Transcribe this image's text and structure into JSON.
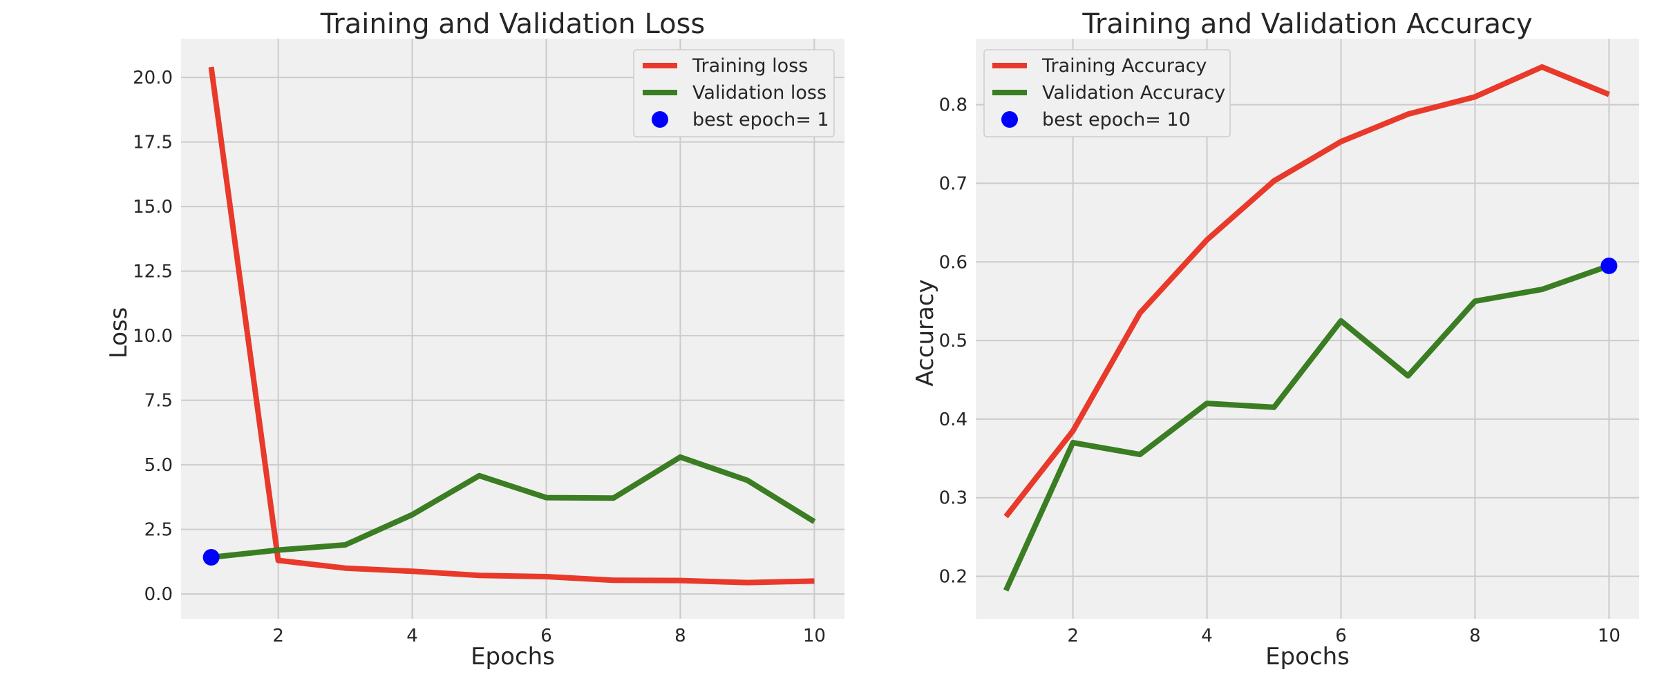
{
  "chart_data": [
    {
      "type": "line",
      "title": "Training and Validation Loss",
      "xlabel": "Epochs",
      "ylabel": "Loss",
      "x": [
        1,
        2,
        3,
        4,
        5,
        6,
        7,
        8,
        9,
        10
      ],
      "xlim": [
        0.55,
        10.45
      ],
      "ylim": [
        -0.96,
        21.5
      ],
      "xticks": [
        2,
        4,
        6,
        8,
        10
      ],
      "xtick_labels": [
        "2",
        "4",
        "6",
        "8",
        "10"
      ],
      "yticks": [
        0,
        2.5,
        5,
        7.5,
        10,
        12.5,
        15,
        17.5,
        20
      ],
      "ytick_labels": [
        "0.0",
        "2.5",
        "5.0",
        "7.5",
        "10.0",
        "12.5",
        "15.0",
        "17.5",
        "20.0"
      ],
      "grid": true,
      "legend_position": "top-right",
      "series": [
        {
          "name": "Training loss",
          "color": "#e8392a",
          "values": [
            20.4,
            1.3,
            1.0,
            0.88,
            0.72,
            0.67,
            0.53,
            0.52,
            0.44,
            0.5
          ]
        },
        {
          "name": "Validation loss",
          "color": "#3a7d22",
          "values": [
            1.42,
            1.7,
            1.9,
            3.07,
            4.58,
            3.73,
            3.71,
            5.3,
            4.4,
            2.8
          ]
        }
      ],
      "best_point": {
        "label": "best epoch= 1",
        "color": "#0000ff",
        "x": 1,
        "y": 1.42
      }
    },
    {
      "type": "line",
      "title": "Training and Validation Accuracy",
      "xlabel": "Epochs",
      "ylabel": "Accuracy",
      "x": [
        1,
        2,
        3,
        4,
        5,
        6,
        7,
        8,
        9,
        10
      ],
      "xlim": [
        0.55,
        10.45
      ],
      "ylim": [
        0.146,
        0.884
      ],
      "xticks": [
        2,
        4,
        6,
        8,
        10
      ],
      "xtick_labels": [
        "2",
        "4",
        "6",
        "8",
        "10"
      ],
      "yticks": [
        0.2,
        0.3,
        0.4,
        0.5,
        0.6,
        0.7,
        0.8
      ],
      "ytick_labels": [
        "0.2",
        "0.3",
        "0.4",
        "0.5",
        "0.6",
        "0.7",
        "0.8"
      ],
      "grid": true,
      "legend_position": "top-left",
      "series": [
        {
          "name": "Training Accuracy",
          "color": "#e8392a",
          "values": [
            0.276,
            0.385,
            0.535,
            0.628,
            0.703,
            0.753,
            0.788,
            0.81,
            0.848,
            0.813
          ]
        },
        {
          "name": "Validation Accuracy",
          "color": "#3a7d22",
          "values": [
            0.182,
            0.37,
            0.355,
            0.42,
            0.415,
            0.525,
            0.455,
            0.55,
            0.565,
            0.595
          ]
        }
      ],
      "best_point": {
        "label": "best epoch= 10",
        "color": "#0000ff",
        "x": 10,
        "y": 0.595
      }
    }
  ]
}
